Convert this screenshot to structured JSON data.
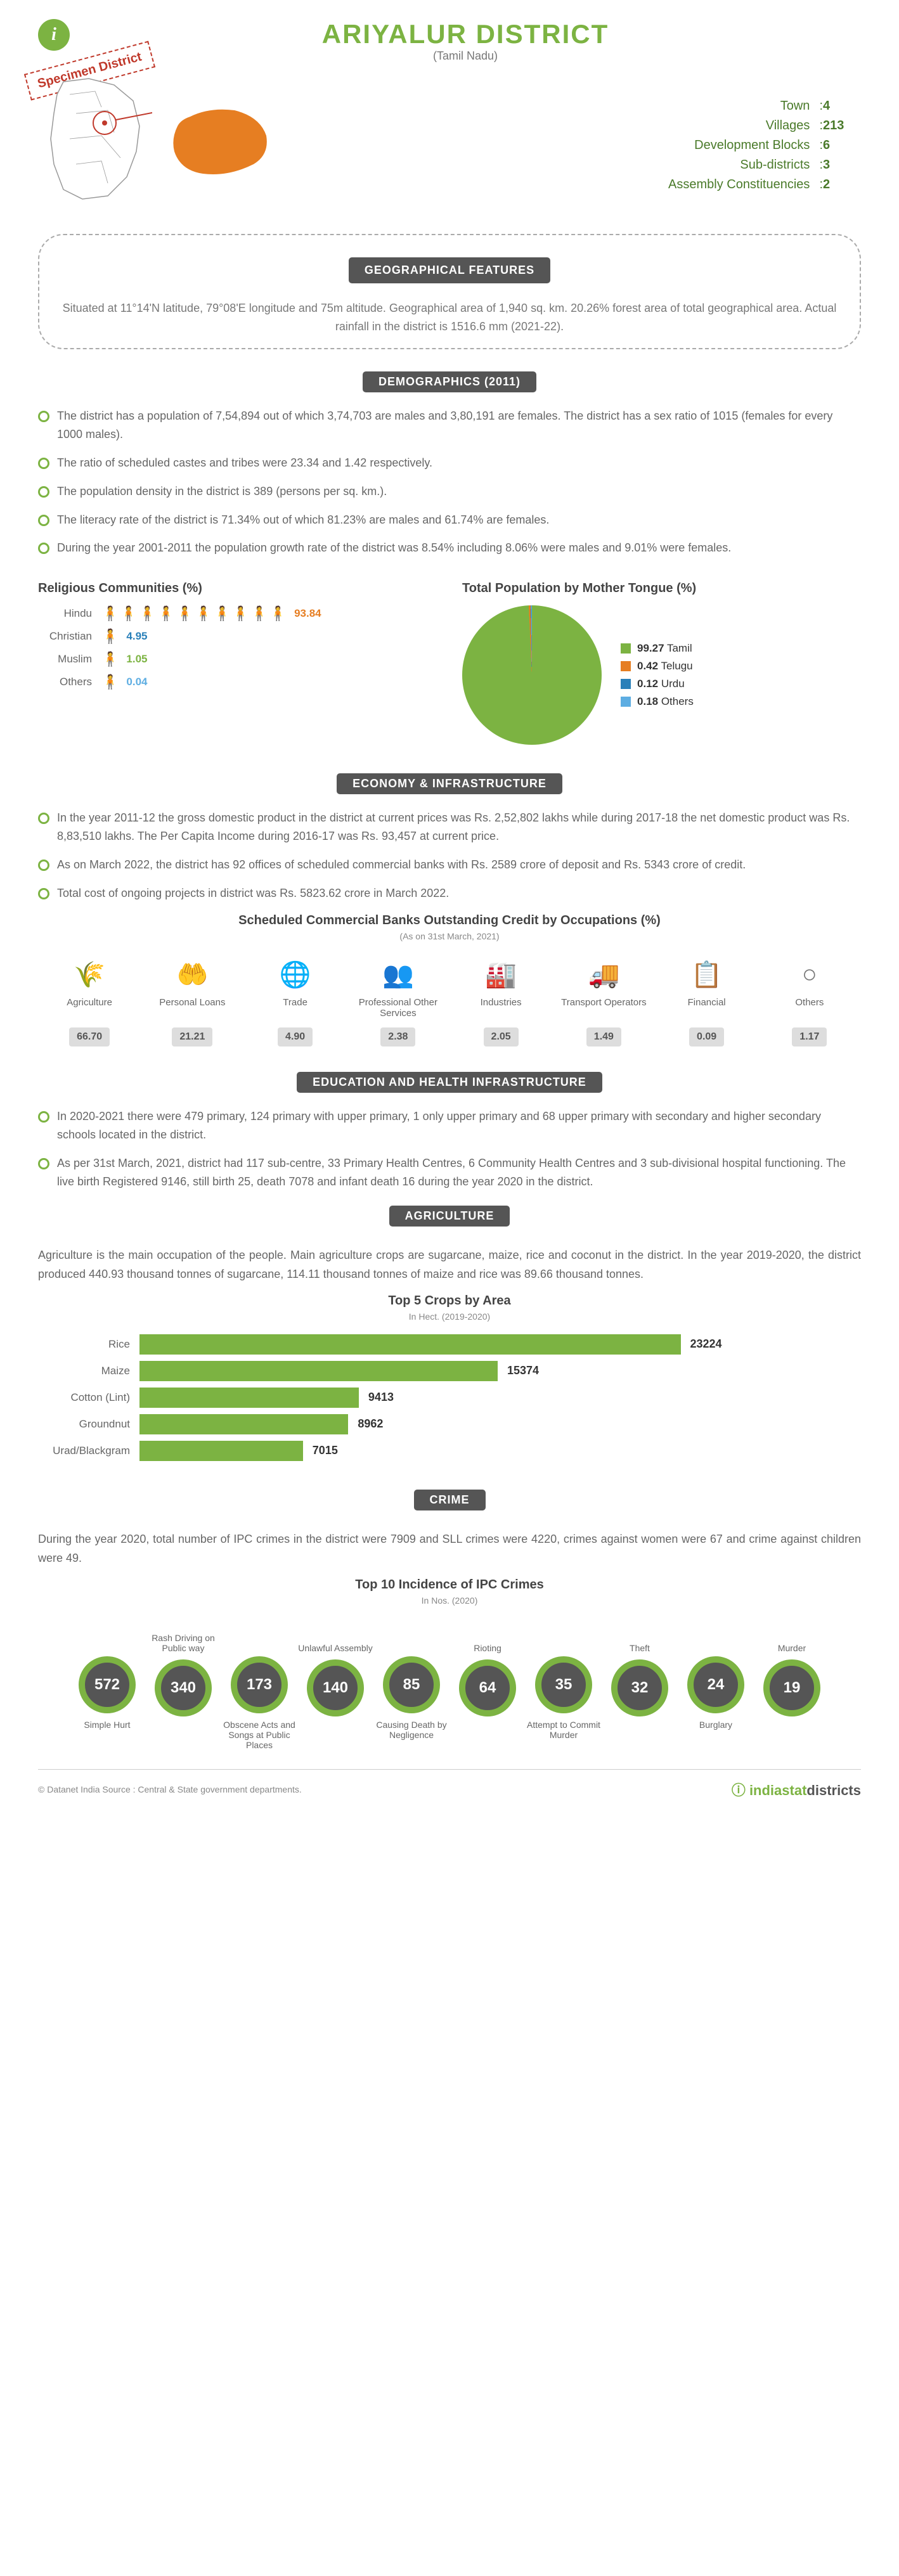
{
  "header": {
    "title": "ARIYALUR DISTRICT",
    "subtitle": "(Tamil Nadu)",
    "specimen": "Specimen District"
  },
  "stats": [
    {
      "label": "Town",
      "val": "4"
    },
    {
      "label": "Villages",
      "val": "213"
    },
    {
      "label": "Development Blocks",
      "val": "6"
    },
    {
      "label": "Sub-districts",
      "val": "3"
    },
    {
      "label": "Assembly Constituencies",
      "val": "2"
    }
  ],
  "geo": {
    "heading": "GEOGRAPHICAL FEATURES",
    "text": "Situated at 11°14'N latitude, 79°08'E longitude and 75m altitude. Geographical area of 1,940 sq. km. 20.26% forest area of total geographical area. Actual rainfall in the district is 1516.6 mm (2021-22)."
  },
  "demo": {
    "heading": "DEMOGRAPHICS (2011)",
    "bullets": [
      "The district has a population of 7,54,894 out of which 3,74,703 are males and 3,80,191 are females. The district has a sex ratio of 1015 (females for every 1000 males).",
      "The ratio of scheduled castes and tribes were 23.34 and 1.42 respectively.",
      "The population density in the district is 389 (persons per sq. km.).",
      "The literacy rate of the district is 71.34% out of which 81.23% are males and 61.74% are females.",
      "During the year 2001-2011 the population growth rate of the district was 8.54% including 8.06% were males and 9.01% were females."
    ]
  },
  "religion": {
    "title": "Religious Communities (%)",
    "items": [
      {
        "label": "Hindu",
        "val": "93.84",
        "icons": 10,
        "color": "#e67e22"
      },
      {
        "label": "Christian",
        "val": "4.95",
        "icons": 1,
        "color": "#2980b9"
      },
      {
        "label": "Muslim",
        "val": "1.05",
        "icons": 1,
        "color": "#7cb342"
      },
      {
        "label": "Others",
        "val": "0.04",
        "icons": 1,
        "color": "#5dade2"
      }
    ]
  },
  "tongue": {
    "title": "Total Population by Mother Tongue (%)",
    "items": [
      {
        "label": "Tamil",
        "val": "99.27",
        "color": "#7cb342"
      },
      {
        "label": "Telugu",
        "val": "0.42",
        "color": "#e67e22"
      },
      {
        "label": "Urdu",
        "val": "0.12",
        "color": "#2980b9"
      },
      {
        "label": "Others",
        "val": "0.18",
        "color": "#5dade2"
      }
    ]
  },
  "economy": {
    "heading": "ECONOMY & INFRASTRUCTURE",
    "bullets": [
      "In the year 2011-12 the gross domestic product in the district at current prices was Rs. 2,52,802 lakhs while during 2017-18 the net domestic product was Rs. 8,83,510 lakhs. The Per Capita Income during 2016-17 was Rs. 93,457 at current price.",
      "As on March 2022, the district has 92 offices of scheduled commercial banks with Rs. 2589 crore of deposit and Rs. 5343 crore of credit.",
      "Total cost of ongoing projects in district was Rs. 5823.62 crore in March 2022."
    ]
  },
  "banks": {
    "title": "Scheduled Commercial Banks Outstanding Credit by Occupations (%)",
    "note": "(As on 31st March, 2021)",
    "items": [
      {
        "label": "Agriculture",
        "val": "66.70",
        "icon": "🌾"
      },
      {
        "label": "Personal Loans",
        "val": "21.21",
        "icon": "🤲"
      },
      {
        "label": "Trade",
        "val": "4.90",
        "icon": "🌐"
      },
      {
        "label": "Professional Other Services",
        "val": "2.38",
        "icon": "👥"
      },
      {
        "label": "Industries",
        "val": "2.05",
        "icon": "🏭"
      },
      {
        "label": "Transport Operators",
        "val": "1.49",
        "icon": "🚚"
      },
      {
        "label": "Financial",
        "val": "0.09",
        "icon": "📋"
      },
      {
        "label": "Others",
        "val": "1.17",
        "icon": "○"
      }
    ]
  },
  "eduhealth": {
    "heading": "EDUCATION AND HEALTH INFRASTRUCTURE",
    "bullets": [
      "In 2020-2021 there were 479 primary, 124 primary with upper primary, 1 only upper primary and 68 upper primary with secondary and higher secondary schools located in the district.",
      "As per 31st March, 2021, district had 117 sub-centre, 33 Primary Health Centres, 6 Community Health Centres and 3 sub-divisional hospital functioning. The live birth Registered 9146, still birth 25, death 7078 and infant death 16 during the year 2020 in the district."
    ]
  },
  "agri": {
    "heading": "AGRICULTURE",
    "para": "Agriculture is the main occupation of the people. Main agriculture crops are sugarcane, maize, rice and coconut in the district. In the year 2019-2020, the district produced 440.93 thousand tonnes of sugarcane, 114.11 thousand tonnes of maize and rice was 89.66 thousand tonnes.",
    "chart_title": "Top 5 Crops by Area",
    "chart_note": "In Hect. (2019-2020)",
    "max": 23224,
    "items": [
      {
        "label": "Rice",
        "val": 23224
      },
      {
        "label": "Maize",
        "val": 15374
      },
      {
        "label": "Cotton (Lint)",
        "val": 9413
      },
      {
        "label": "Groundnut",
        "val": 8962
      },
      {
        "label": "Urad/Blackgram",
        "val": 7015
      }
    ]
  },
  "crime": {
    "heading": "CRIME",
    "para": "During the year 2020, total number of IPC crimes in the district were 7909 and SLL crimes were 4220, crimes against women were 67 and crime against children were 49.",
    "chart_title": "Top 10 Incidence of IPC Crimes",
    "chart_note": "In Nos. (2020)",
    "top": [
      {
        "label": "Rash Driving on Public way",
        "val": "340"
      },
      {
        "label": "Unlawful Assembly",
        "val": "140"
      },
      {
        "label": "Rioting",
        "val": "64"
      },
      {
        "label": "Theft",
        "val": "32"
      },
      {
        "label": "Murder",
        "val": "19"
      }
    ],
    "bottom": [
      {
        "label": "Simple Hurt",
        "val": "572"
      },
      {
        "label": "Obscene Acts and Songs at Public Places",
        "val": "173"
      },
      {
        "label": "Causing Death by Negligence",
        "val": "85"
      },
      {
        "label": "Attempt to Commit Murder",
        "val": "35"
      },
      {
        "label": "Burglary",
        "val": "24"
      }
    ]
  },
  "footer": {
    "source": "© Datanet India  Source : Central & State government departments.",
    "logo1": "indiastat",
    "logo2": "districts"
  },
  "colors": {
    "green": "#7cb342",
    "dark": "#555555",
    "text": "#666666"
  }
}
